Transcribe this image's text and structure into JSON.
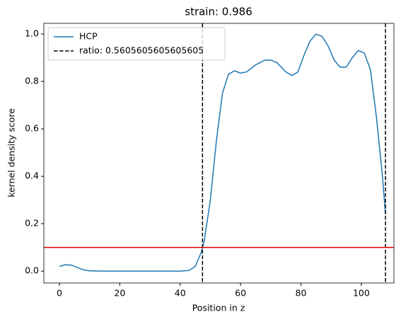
{
  "chart_data": {
    "type": "line",
    "title": "strain: 0.986",
    "x_label": "Position in z",
    "y_label": "kernel density score",
    "x": [
      0,
      2,
      4,
      6,
      8,
      10,
      15,
      20,
      30,
      40,
      43,
      45,
      46,
      47,
      48,
      50,
      52,
      54,
      56,
      58,
      60,
      62,
      65,
      68,
      70,
      72,
      75,
      77,
      79,
      81,
      83,
      85,
      87,
      89,
      91,
      93,
      95,
      97,
      99,
      101,
      103,
      105,
      107,
      108
    ],
    "series": [
      {
        "name": "HCP",
        "color": "#1f77b4",
        "values": [
          0.02,
          0.027,
          0.025,
          0.015,
          0.005,
          0.001,
          0,
          0,
          0,
          0,
          0.003,
          0.02,
          0.05,
          0.08,
          0.13,
          0.3,
          0.55,
          0.75,
          0.83,
          0.845,
          0.835,
          0.84,
          0.87,
          0.89,
          0.89,
          0.88,
          0.84,
          0.825,
          0.84,
          0.91,
          0.97,
          1.0,
          0.99,
          0.95,
          0.89,
          0.86,
          0.86,
          0.9,
          0.93,
          0.92,
          0.85,
          0.65,
          0.4,
          0.24
        ]
      }
    ],
    "vlines": {
      "name": "ratio: 0.5605605605605605",
      "color": "#000000",
      "x": [
        47.4,
        108
      ]
    },
    "hline": {
      "y": 0.1,
      "color": "#e00000"
    },
    "xlim": [
      -5.15,
      110.8
    ],
    "ylim": [
      -0.05,
      1.045
    ],
    "xticks": [
      0,
      20,
      40,
      60,
      80,
      100
    ],
    "yticks": [
      {
        "value": 0,
        "label": "0.0"
      },
      0.2,
      0.4,
      0.6,
      0.8,
      {
        "value": 1,
        "label": "1.0"
      }
    ],
    "legend": "upper left"
  }
}
